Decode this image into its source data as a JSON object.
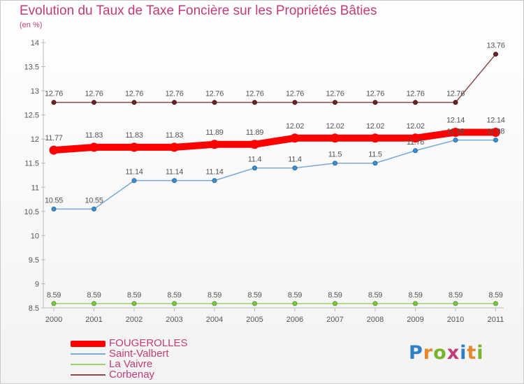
{
  "title": "Evolution du Taux de Taxe Foncière sur les Propriétés Bâties",
  "subtitle": "(en %)",
  "logo": {
    "text": "Proxiti",
    "letters": [
      "P",
      "r",
      "o",
      "x",
      "i",
      "t",
      "i"
    ],
    "colors": [
      "#2f7fc7",
      "#e5872a",
      "#7ab32d",
      "#c23b78",
      "#2f7fc7",
      "#e5872a",
      "#7ab32d"
    ]
  },
  "chart_data": {
    "type": "line",
    "title": "Evolution du Taux de Taxe Foncière sur les Propriétés Bâties",
    "ylabel": "(en %)",
    "xlabel": "",
    "x": [
      "2000",
      "2001",
      "2002",
      "2003",
      "2004",
      "2005",
      "2006",
      "2007",
      "2008",
      "2009",
      "2010",
      "2011"
    ],
    "ylim": [
      8.5,
      14
    ],
    "yticks": [
      8.5,
      9,
      9.5,
      10,
      10.5,
      11,
      11.5,
      12,
      12.5,
      13,
      13.5,
      14
    ],
    "grid": false,
    "legend_position": "bottom-left",
    "series": [
      {
        "name": "FOUGEROLLES",
        "color": "#ff0000",
        "values": [
          11.77,
          11.83,
          11.83,
          11.83,
          11.89,
          11.89,
          12.02,
          12.02,
          12.02,
          12.02,
          12.14,
          12.14
        ]
      },
      {
        "name": "Saint-Valbert",
        "color": "#7aa9d6",
        "values": [
          10.55,
          10.55,
          11.14,
          11.14,
          11.14,
          11.4,
          11.4,
          11.5,
          11.5,
          11.76,
          11.98,
          11.98
        ]
      },
      {
        "name": "La Vaivre",
        "color": "#9ad46a",
        "values": [
          8.59,
          8.59,
          8.59,
          8.59,
          8.59,
          8.59,
          8.59,
          8.59,
          8.59,
          8.59,
          8.59,
          8.59
        ]
      },
      {
        "name": "Corbenay",
        "color": "#8b4a4a",
        "values": [
          12.76,
          12.76,
          12.76,
          12.76,
          12.76,
          12.76,
          12.76,
          12.76,
          12.76,
          12.76,
          12.76,
          13.76
        ]
      }
    ],
    "data_labels": {
      "FOUGEROLLES": [
        "11.77",
        "11.83",
        "11.83",
        "11.83",
        "11.89",
        "11.89",
        "12.02",
        "12.02",
        "12.02",
        "12.02",
        "12.14",
        "12.14"
      ],
      "Saint-Valbert": [
        "10.55",
        "10.55",
        "11.14",
        "11.14",
        "11.14",
        "11.4",
        "11.4",
        "11.5",
        "11.5",
        "11.76",
        "11.98",
        "11.98"
      ],
      "La Vaivre": [
        "8.59",
        "8.59",
        "8.59",
        "8.59",
        "8.59",
        "8.59",
        "8.59",
        "8.59",
        "8.59",
        "8.59",
        "8.59",
        "8.59"
      ],
      "Corbenay": [
        "12.76",
        "12.76",
        "12.76",
        "12.76",
        "12.76",
        "12.76",
        "12.76",
        "12.76",
        "12.76",
        "12.76",
        "12.76",
        "13.76"
      ]
    }
  }
}
